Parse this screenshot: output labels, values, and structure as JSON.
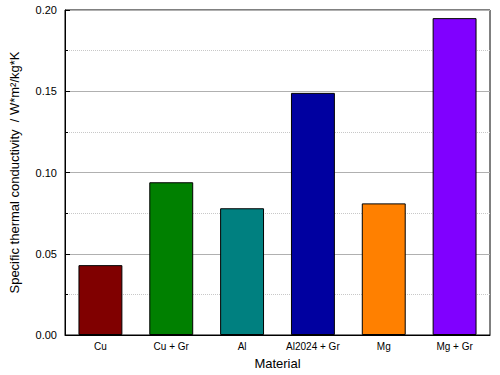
{
  "chart_data": {
    "type": "bar",
    "x_label": "Material",
    "y_label": "Specific thermal conductivity  / W*m²/kg*K",
    "categories": [
      "Cu",
      "Cu + Gr",
      "Al",
      "Al2024 + Gr",
      "Mg",
      "Mg + Gr"
    ],
    "values": [
      0.043,
      0.094,
      0.078,
      0.149,
      0.081,
      0.195
    ],
    "colors": [
      "#800000",
      "#008000",
      "#008080",
      "#0000a0",
      "#ff8000",
      "#8000ff"
    ],
    "ylim": [
      0,
      0.2
    ],
    "yticks": [
      {
        "value": 0,
        "label": "0.00"
      },
      {
        "value": 0.05,
        "label": "0.05"
      },
      {
        "value": 0.1,
        "label": "0.10"
      },
      {
        "value": 0.15,
        "label": "0.15"
      },
      {
        "value": 0.2,
        "label": "0.20"
      }
    ],
    "grid": true
  }
}
